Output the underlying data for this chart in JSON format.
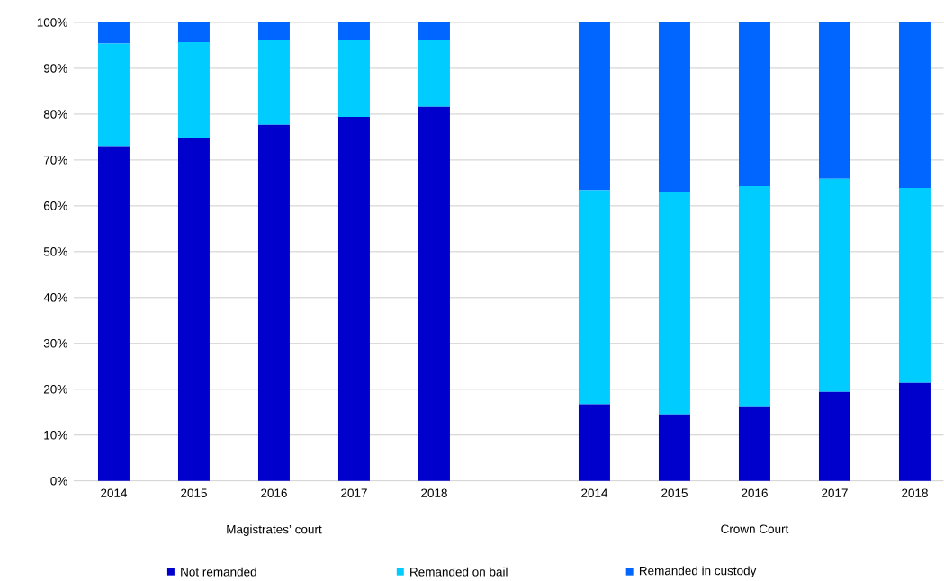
{
  "chart_data": {
    "type": "bar",
    "stacked": true,
    "categories": [
      "2014",
      "2015",
      "2016",
      "2017",
      "2018",
      null,
      "2014",
      "2015",
      "2016",
      "2017",
      "2018"
    ],
    "series": [
      {
        "name": "Not remanded",
        "color": "#0000cc",
        "values": [
          73.0,
          74.9,
          77.7,
          79.4,
          81.6,
          null,
          16.7,
          14.5,
          16.3,
          19.4,
          21.4
        ]
      },
      {
        "name": "Remanded on bail",
        "color": "#00ccff",
        "values": [
          22.4,
          20.8,
          18.4,
          16.7,
          14.5,
          null,
          46.7,
          48.6,
          48.0,
          46.5,
          42.5
        ]
      },
      {
        "name": "Remanded in custody",
        "color": "#0066ff",
        "values": [
          4.6,
          4.3,
          3.9,
          3.9,
          3.9,
          null,
          36.6,
          36.9,
          35.7,
          34.1,
          36.1
        ]
      }
    ],
    "ylim": [
      0,
      100
    ],
    "yticks": [
      {
        "value": 0,
        "label": "0%"
      },
      {
        "value": 10,
        "label": "10%"
      },
      {
        "value": 20,
        "label": "20%"
      },
      {
        "value": 30,
        "label": "30%"
      },
      {
        "value": 40,
        "label": "40%"
      },
      {
        "value": 50,
        "label": "50%"
      },
      {
        "value": 60,
        "label": "60%"
      },
      {
        "value": 70,
        "label": "70%"
      },
      {
        "value": 80,
        "label": "80%"
      },
      {
        "value": 90,
        "label": "90%"
      },
      {
        "value": 100,
        "label": "100%"
      }
    ],
    "annotations": [
      "Magistrates’ court",
      "Crown Court"
    ],
    "grid": "y",
    "legend": "bottom"
  }
}
